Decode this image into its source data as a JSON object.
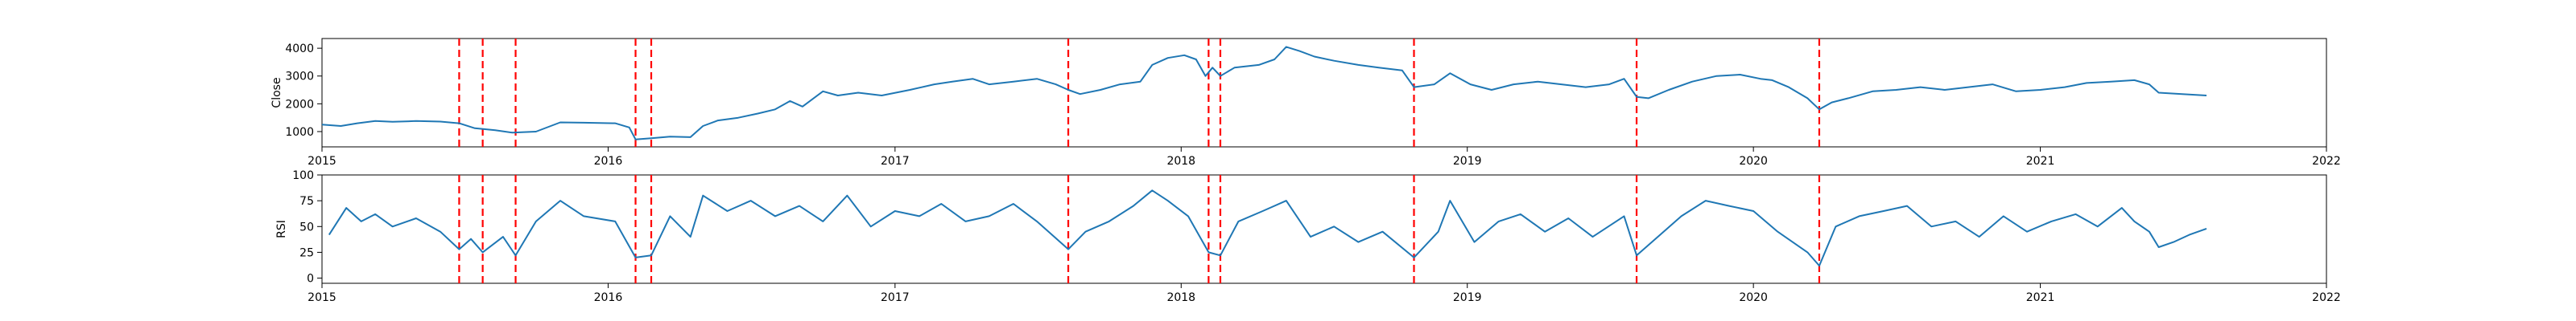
{
  "chart_data": [
    {
      "type": "line",
      "ylabel": "Close",
      "xlabel": "",
      "title": "",
      "xlim": [
        "2015-01-01",
        "2022-01-01"
      ],
      "ylim": [
        450,
        4350
      ],
      "grid": false,
      "x_ticks": [
        "2015",
        "2016",
        "2017",
        "2018",
        "2019",
        "2020",
        "2021",
        "2022"
      ],
      "y_ticks": [
        1000,
        2000,
        3000,
        4000
      ],
      "series": [
        {
          "color": "#1f77b4",
          "points": [
            [
              "2015-01-01",
              1250
            ],
            [
              "2015-01-25",
              1200
            ],
            [
              "2015-02-15",
              1300
            ],
            [
              "2015-03-10",
              1380
            ],
            [
              "2015-04-01",
              1350
            ],
            [
              "2015-05-01",
              1380
            ],
            [
              "2015-06-01",
              1360
            ],
            [
              "2015-06-25",
              1300
            ],
            [
              "2015-07-15",
              1120
            ],
            [
              "2015-08-10",
              1050
            ],
            [
              "2015-09-01",
              960
            ],
            [
              "2015-10-01",
              1000
            ],
            [
              "2015-11-01",
              1330
            ],
            [
              "2015-12-01",
              1320
            ],
            [
              "2016-01-10",
              1300
            ],
            [
              "2016-01-28",
              1150
            ],
            [
              "2016-02-05",
              720
            ],
            [
              "2016-02-25",
              760
            ],
            [
              "2016-03-20",
              820
            ],
            [
              "2016-04-15",
              800
            ],
            [
              "2016-05-01",
              1200
            ],
            [
              "2016-05-20",
              1400
            ],
            [
              "2016-06-15",
              1500
            ],
            [
              "2016-07-10",
              1650
            ],
            [
              "2016-08-01",
              1800
            ],
            [
              "2016-08-20",
              2100
            ],
            [
              "2016-09-05",
              1900
            ],
            [
              "2016-10-01",
              2450
            ],
            [
              "2016-10-20",
              2300
            ],
            [
              "2016-11-15",
              2400
            ],
            [
              "2016-12-15",
              2300
            ],
            [
              "2017-01-20",
              2500
            ],
            [
              "2017-02-20",
              2700
            ],
            [
              "2017-03-15",
              2800
            ],
            [
              "2017-04-10",
              2900
            ],
            [
              "2017-05-01",
              2700
            ],
            [
              "2017-06-01",
              2800
            ],
            [
              "2017-07-01",
              2900
            ],
            [
              "2017-07-25",
              2700
            ],
            [
              "2017-08-10",
              2500
            ],
            [
              "2017-08-25",
              2350
            ],
            [
              "2017-09-20",
              2500
            ],
            [
              "2017-10-15",
              2700
            ],
            [
              "2017-11-10",
              2800
            ],
            [
              "2017-11-25",
              3400
            ],
            [
              "2017-12-15",
              3650
            ],
            [
              "2018-01-05",
              3750
            ],
            [
              "2018-01-20",
              3600
            ],
            [
              "2018-02-01",
              3000
            ],
            [
              "2018-02-10",
              3300
            ],
            [
              "2018-02-20",
              3000
            ],
            [
              "2018-03-10",
              3300
            ],
            [
              "2018-04-10",
              3400
            ],
            [
              "2018-04-30",
              3600
            ],
            [
              "2018-05-15",
              4050
            ],
            [
              "2018-06-01",
              3900
            ],
            [
              "2018-06-20",
              3700
            ],
            [
              "2018-07-15",
              3550
            ],
            [
              "2018-08-15",
              3400
            ],
            [
              "2018-09-10",
              3300
            ],
            [
              "2018-10-10",
              3200
            ],
            [
              "2018-10-25",
              2600
            ],
            [
              "2018-11-20",
              2700
            ],
            [
              "2018-12-10",
              3100
            ],
            [
              "2019-01-05",
              2700
            ],
            [
              "2019-02-01",
              2500
            ],
            [
              "2019-03-01",
              2700
            ],
            [
              "2019-04-01",
              2800
            ],
            [
              "2019-05-01",
              2700
            ],
            [
              "2019-06-01",
              2600
            ],
            [
              "2019-07-01",
              2700
            ],
            [
              "2019-07-20",
              2900
            ],
            [
              "2019-08-05",
              2250
            ],
            [
              "2019-08-20",
              2200
            ],
            [
              "2019-09-15",
              2500
            ],
            [
              "2019-10-15",
              2800
            ],
            [
              "2019-11-15",
              3000
            ],
            [
              "2019-12-15",
              3050
            ],
            [
              "2020-01-10",
              2900
            ],
            [
              "2020-01-25",
              2850
            ],
            [
              "2020-02-15",
              2600
            ],
            [
              "2020-03-10",
              2200
            ],
            [
              "2020-03-25",
              1800
            ],
            [
              "2020-04-10",
              2050
            ],
            [
              "2020-05-01",
              2200
            ],
            [
              "2020-06-01",
              2450
            ],
            [
              "2020-07-01",
              2500
            ],
            [
              "2020-08-01",
              2600
            ],
            [
              "2020-09-01",
              2500
            ],
            [
              "2020-10-01",
              2600
            ],
            [
              "2020-11-01",
              2700
            ],
            [
              "2020-12-01",
              2450
            ],
            [
              "2021-01-01",
              2500
            ],
            [
              "2021-02-01",
              2600
            ],
            [
              "2021-03-01",
              2750
            ],
            [
              "2021-04-01",
              2800
            ],
            [
              "2021-05-01",
              2850
            ],
            [
              "2021-05-20",
              2700
            ],
            [
              "2021-06-01",
              2400
            ],
            [
              "2021-07-01",
              2350
            ],
            [
              "2021-08-01",
              2300
            ]
          ]
        }
      ],
      "vlines": [
        "2015-06-25",
        "2015-07-25",
        "2015-09-05",
        "2016-02-05",
        "2016-02-25",
        "2017-08-10",
        "2018-02-05",
        "2018-02-20",
        "2018-10-25",
        "2019-08-05",
        "2020-03-25"
      ],
      "vline_color": "#ff0000"
    },
    {
      "type": "line",
      "ylabel": "RSI",
      "xlabel": "",
      "title": "",
      "xlim": [
        "2015-01-01",
        "2022-01-01"
      ],
      "ylim": [
        -5,
        100
      ],
      "grid": false,
      "x_ticks": [
        "2015",
        "2016",
        "2017",
        "2018",
        "2019",
        "2020",
        "2021",
        "2022"
      ],
      "y_ticks": [
        0,
        25,
        50,
        75,
        100
      ],
      "series": [
        {
          "color": "#1f77b4",
          "points": [
            [
              "2015-01-10",
              42
            ],
            [
              "2015-02-01",
              68
            ],
            [
              "2015-02-20",
              55
            ],
            [
              "2015-03-10",
              62
            ],
            [
              "2015-04-01",
              50
            ],
            [
              "2015-05-01",
              58
            ],
            [
              "2015-06-01",
              45
            ],
            [
              "2015-06-25",
              28
            ],
            [
              "2015-07-10",
              38
            ],
            [
              "2015-07-25",
              25
            ],
            [
              "2015-08-20",
              40
            ],
            [
              "2015-09-05",
              22
            ],
            [
              "2015-10-01",
              55
            ],
            [
              "2015-11-01",
              75
            ],
            [
              "2015-12-01",
              60
            ],
            [
              "2016-01-10",
              55
            ],
            [
              "2016-02-05",
              20
            ],
            [
              "2016-02-25",
              22
            ],
            [
              "2016-03-20",
              60
            ],
            [
              "2016-04-15",
              40
            ],
            [
              "2016-05-01",
              80
            ],
            [
              "2016-06-01",
              65
            ],
            [
              "2016-07-01",
              75
            ],
            [
              "2016-08-01",
              60
            ],
            [
              "2016-09-01",
              70
            ],
            [
              "2016-10-01",
              55
            ],
            [
              "2016-11-01",
              80
            ],
            [
              "2016-12-01",
              50
            ],
            [
              "2017-01-01",
              65
            ],
            [
              "2017-02-01",
              60
            ],
            [
              "2017-03-01",
              72
            ],
            [
              "2017-04-01",
              55
            ],
            [
              "2017-05-01",
              60
            ],
            [
              "2017-06-01",
              72
            ],
            [
              "2017-07-01",
              55
            ],
            [
              "2017-08-10",
              28
            ],
            [
              "2017-09-01",
              45
            ],
            [
              "2017-10-01",
              55
            ],
            [
              "2017-11-01",
              70
            ],
            [
              "2017-11-25",
              85
            ],
            [
              "2017-12-15",
              75
            ],
            [
              "2018-01-10",
              60
            ],
            [
              "2018-02-05",
              25
            ],
            [
              "2018-02-20",
              22
            ],
            [
              "2018-03-15",
              55
            ],
            [
              "2018-04-15",
              65
            ],
            [
              "2018-05-15",
              75
            ],
            [
              "2018-06-15",
              40
            ],
            [
              "2018-07-15",
              50
            ],
            [
              "2018-08-15",
              35
            ],
            [
              "2018-09-15",
              45
            ],
            [
              "2018-10-25",
              20
            ],
            [
              "2018-11-25",
              45
            ],
            [
              "2018-12-10",
              75
            ],
            [
              "2019-01-10",
              35
            ],
            [
              "2019-02-10",
              55
            ],
            [
              "2019-03-10",
              62
            ],
            [
              "2019-04-10",
              45
            ],
            [
              "2019-05-10",
              58
            ],
            [
              "2019-06-10",
              40
            ],
            [
              "2019-07-20",
              60
            ],
            [
              "2019-08-05",
              22
            ],
            [
              "2019-09-01",
              40
            ],
            [
              "2019-10-01",
              60
            ],
            [
              "2019-11-01",
              75
            ],
            [
              "2019-12-01",
              70
            ],
            [
              "2020-01-01",
              65
            ],
            [
              "2020-02-01",
              45
            ],
            [
              "2020-03-10",
              25
            ],
            [
              "2020-03-25",
              12
            ],
            [
              "2020-04-15",
              50
            ],
            [
              "2020-05-15",
              60
            ],
            [
              "2020-06-15",
              65
            ],
            [
              "2020-07-15",
              70
            ],
            [
              "2020-08-15",
              50
            ],
            [
              "2020-09-15",
              55
            ],
            [
              "2020-10-15",
              40
            ],
            [
              "2020-11-15",
              60
            ],
            [
              "2020-12-15",
              45
            ],
            [
              "2021-01-15",
              55
            ],
            [
              "2021-02-15",
              62
            ],
            [
              "2021-03-15",
              50
            ],
            [
              "2021-04-15",
              68
            ],
            [
              "2021-05-01",
              55
            ],
            [
              "2021-05-20",
              45
            ],
            [
              "2021-06-01",
              30
            ],
            [
              "2021-06-20",
              35
            ],
            [
              "2021-07-10",
              42
            ],
            [
              "2021-08-01",
              48
            ]
          ]
        }
      ],
      "vlines": [
        "2015-06-25",
        "2015-07-25",
        "2015-09-05",
        "2016-02-05",
        "2016-02-25",
        "2017-08-10",
        "2018-02-05",
        "2018-02-20",
        "2018-10-25",
        "2019-08-05",
        "2020-03-25"
      ],
      "vline_color": "#ff0000"
    }
  ]
}
